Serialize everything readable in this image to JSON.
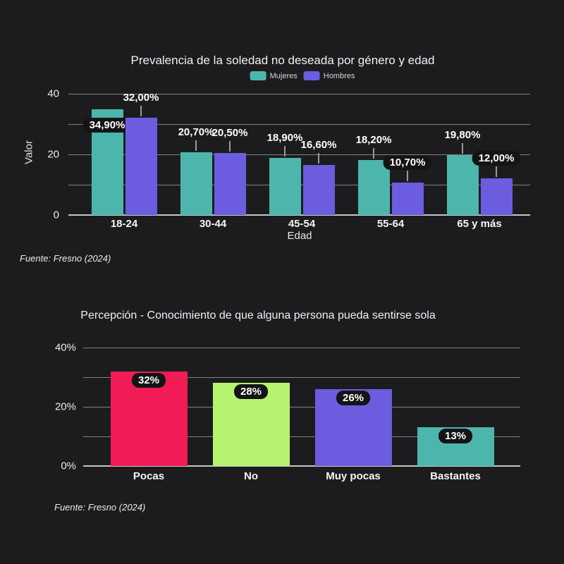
{
  "page": {
    "background": "#1c1c1e"
  },
  "chart_data": [
    {
      "type": "bar",
      "title": "Prevalencia de la soledad no deseada por género y edad",
      "source": "Fuente: Fresno (2024)",
      "xlabel": "Edad",
      "ylabel": "Valor",
      "categories": [
        "18-24",
        "30-44",
        "45-54",
        "55-64",
        "65 y más"
      ],
      "series": [
        {
          "name": "Mujeres",
          "color": "#4db6ac",
          "values": [
            34.9,
            20.7,
            18.9,
            18.2,
            19.8
          ],
          "labels": [
            "34,90%",
            "20,70%",
            "18,90%",
            "18,20%",
            "19,80%"
          ],
          "label_styles": [
            "badge-inside",
            "plain-above",
            "plain-above",
            "plain-above",
            "plain-above"
          ]
        },
        {
          "name": "Hombres",
          "color": "#6b5ce0",
          "values": [
            32.0,
            20.5,
            16.6,
            10.7,
            12.0
          ],
          "labels": [
            "32,00%",
            "20,50%",
            "16,60%",
            "10,70%",
            "12,00%"
          ],
          "label_styles": [
            "plain-above",
            "plain-above",
            "plain-above",
            "badge-above",
            "badge-above"
          ]
        }
      ],
      "ylim": [
        0,
        40
      ],
      "ytick_values": [
        0,
        20,
        40
      ],
      "ytick_labels": [
        "0",
        "20",
        "40"
      ],
      "grid": true,
      "grid_step": 10,
      "legend_position": "top"
    },
    {
      "type": "bar",
      "title": "Percepción - Conocimiento de que alguna persona pueda sentirse sola",
      "source": "Fuente: Fresno (2024)",
      "xlabel": "",
      "ylabel": "",
      "categories": [
        "Pocas",
        "No",
        "Muy pocas",
        "Bastantes"
      ],
      "values": [
        32,
        28,
        26,
        13
      ],
      "labels": [
        "32%",
        "28%",
        "26%",
        "13%"
      ],
      "colors": [
        "#f11b55",
        "#b6f36e",
        "#6b5ce0",
        "#4db6ac"
      ],
      "ylim": [
        0,
        40
      ],
      "ytick_values": [
        0,
        20,
        40
      ],
      "ytick_labels": [
        "0%",
        "20%",
        "40%"
      ],
      "grid": true,
      "grid_step": 10,
      "legend_position": "none"
    }
  ]
}
